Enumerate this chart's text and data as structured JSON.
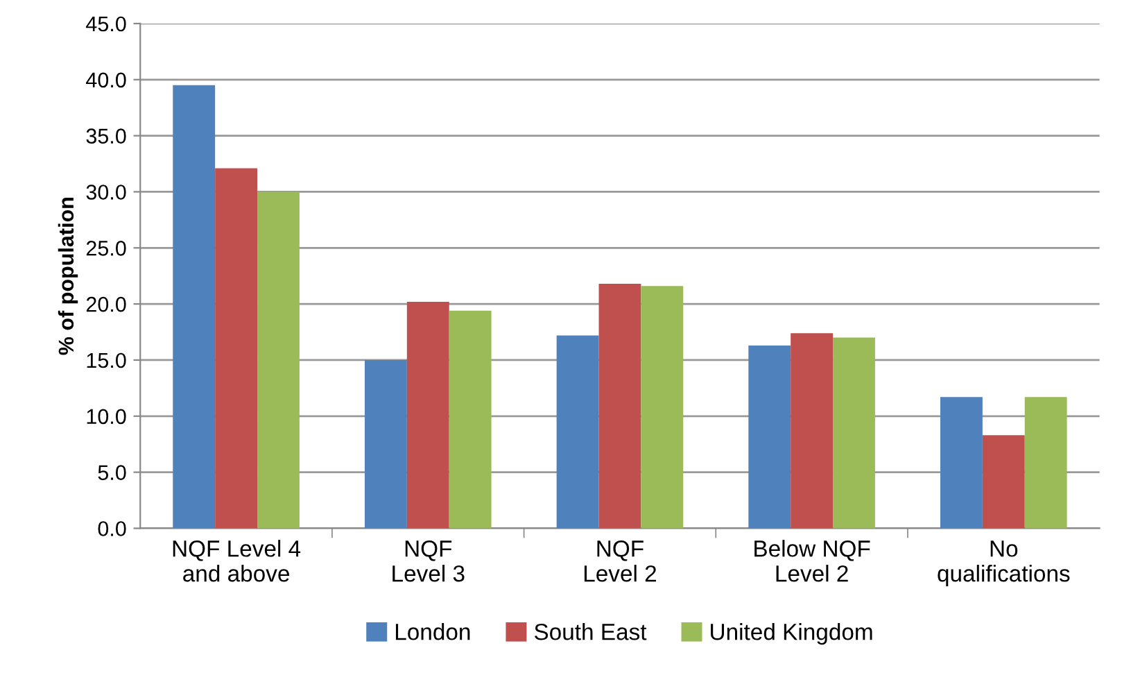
{
  "chart_data": {
    "type": "bar",
    "ylabel": "% of population",
    "categories": [
      "NQF Level 4\nand above",
      "NQF\nLevel 3",
      "NQF\nLevel 2",
      "Below NQF\nLevel 2",
      "No\nqualifications"
    ],
    "series": [
      {
        "name": "London",
        "color": "#4f81bd",
        "values": [
          39.5,
          15.0,
          17.2,
          16.3,
          11.7
        ]
      },
      {
        "name": "South East",
        "color": "#c0504d",
        "values": [
          32.1,
          20.2,
          21.8,
          17.4,
          8.3
        ]
      },
      {
        "name": "United Kingdom",
        "color": "#9bbb59",
        "values": [
          30.0,
          19.4,
          21.6,
          17.0,
          11.7
        ]
      }
    ],
    "ylim": [
      0,
      45
    ],
    "yticks": [
      {
        "value": 0,
        "label": "0.0"
      },
      {
        "value": 5,
        "label": "5.0"
      },
      {
        "value": 10,
        "label": "10.0"
      },
      {
        "value": 15,
        "label": "15.0"
      },
      {
        "value": 20,
        "label": "20.0"
      },
      {
        "value": 25,
        "label": "25.0"
      },
      {
        "value": 30,
        "label": "30.0"
      },
      {
        "value": 35,
        "label": "35.0"
      },
      {
        "value": 40,
        "label": "40.0"
      },
      {
        "value": 45,
        "label": "45.0"
      }
    ],
    "grid": "y",
    "legend": "bottom"
  }
}
